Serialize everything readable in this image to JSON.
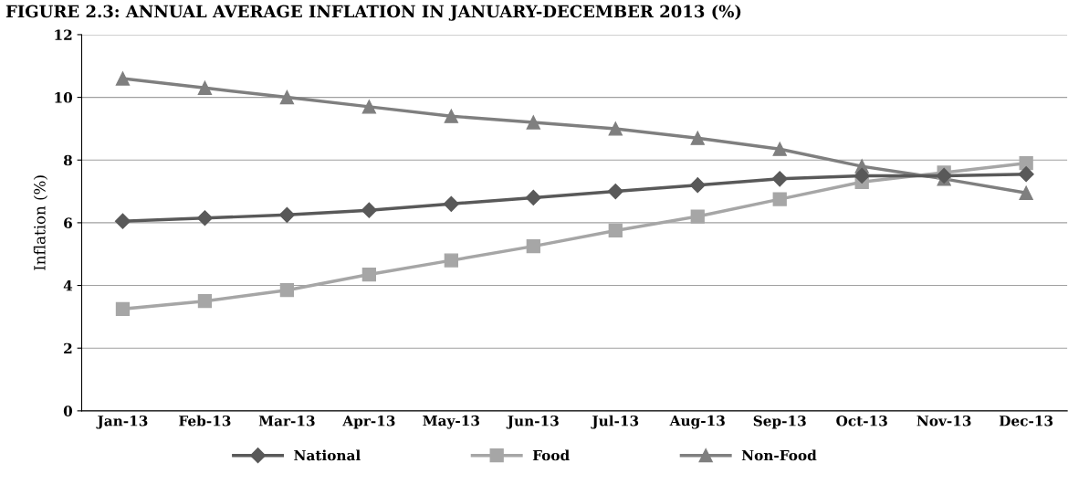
{
  "chart_data": {
    "type": "line",
    "title": "FIGURE 2.3: ANNUAL AVERAGE INFLATION IN JANUARY-DECEMBER 2013 (%)",
    "ylabel": "Inflation (%)",
    "categories": [
      "Jan-13",
      "Feb-13",
      "Mar-13",
      "Apr-13",
      "May-13",
      "Jun-13",
      "Jul-13",
      "Aug-13",
      "Sep-13",
      "Oct-13",
      "Nov-13",
      "Dec-13"
    ],
    "series": [
      {
        "name": "National",
        "color": "#595959",
        "marker": "diamond",
        "values": [
          6.05,
          6.15,
          6.25,
          6.4,
          6.6,
          6.8,
          7.0,
          7.2,
          7.4,
          7.5,
          7.5,
          7.55
        ]
      },
      {
        "name": "Food",
        "color": "#a6a6a6",
        "marker": "square",
        "values": [
          3.25,
          3.5,
          3.85,
          4.35,
          4.8,
          5.25,
          5.75,
          6.2,
          6.75,
          7.3,
          7.6,
          7.9
        ]
      },
      {
        "name": "Non-Food",
        "color": "#7f7f7f",
        "marker": "triangle",
        "values": [
          10.6,
          10.3,
          10.0,
          9.7,
          9.4,
          9.2,
          9.0,
          8.7,
          8.35,
          7.8,
          7.4,
          6.95
        ]
      }
    ],
    "ylim": [
      0,
      12
    ],
    "yticks": [
      0,
      2,
      4,
      6,
      8,
      10,
      12
    ],
    "grid": "y",
    "legend": "bottom"
  }
}
